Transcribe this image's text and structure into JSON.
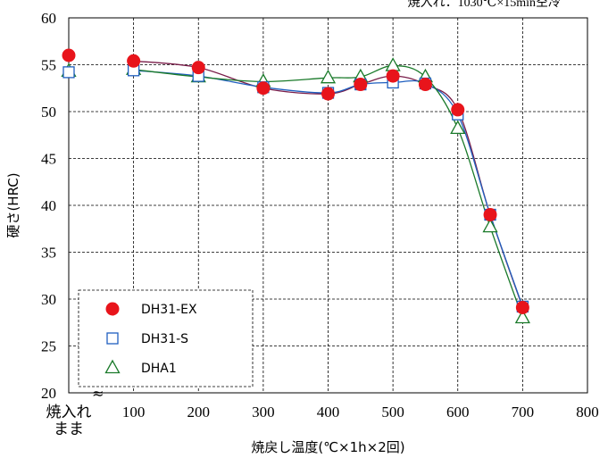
{
  "chart_data": {
    "type": "line",
    "annotation": "焼入れ：1030℃×15min空冷",
    "xlabel": "焼戻し温度(℃×1h×2回)",
    "ylabel": "硬さ(HRC)",
    "xlim": [
      0,
      800
    ],
    "ylim": [
      20,
      60
    ],
    "x_ticks": [
      {
        "x": 0,
        "label": "焼入れ\nまま"
      },
      {
        "x": 100,
        "label": "100"
      },
      {
        "x": 200,
        "label": "200"
      },
      {
        "x": 300,
        "label": "300"
      },
      {
        "x": 400,
        "label": "400"
      },
      {
        "x": 500,
        "label": "500"
      },
      {
        "x": 600,
        "label": "600"
      },
      {
        "x": 700,
        "label": "700"
      },
      {
        "x": 800,
        "label": "800"
      }
    ],
    "y_ticks": [
      20,
      25,
      30,
      35,
      40,
      45,
      50,
      55,
      60
    ],
    "axis_break": "≈",
    "grid": true,
    "legend_position": "bottom-left",
    "series": [
      {
        "name": "DH31-EX",
        "marker": "filled-circle",
        "color": "#e8141b",
        "line_color": "#7a1e4a",
        "points": [
          [
            100,
            55.4
          ],
          [
            200,
            54.7
          ],
          [
            300,
            52.5
          ],
          [
            400,
            51.9
          ],
          [
            450,
            52.9
          ],
          [
            500,
            53.8
          ],
          [
            550,
            52.9
          ],
          [
            600,
            50.2
          ],
          [
            650,
            39.0
          ],
          [
            700,
            29.1
          ]
        ]
      },
      {
        "name": "DH31-S",
        "marker": "open-square",
        "color": "#1f5fbf",
        "line_color": "#1f5fbf",
        "points": [
          [
            0,
            54.2
          ],
          [
            100,
            54.4
          ],
          [
            200,
            53.8
          ],
          [
            300,
            52.6
          ],
          [
            400,
            52.0
          ],
          [
            450,
            52.9
          ],
          [
            500,
            53.1
          ],
          [
            550,
            53.0
          ],
          [
            600,
            49.7
          ],
          [
            650,
            39.0
          ],
          [
            700,
            29.2
          ]
        ]
      },
      {
        "name": "DHA1",
        "marker": "open-triangle",
        "color": "#1a7a2a",
        "line_color": "#1a7a2a",
        "points": [
          [
            0,
            54.3
          ],
          [
            100,
            54.5
          ],
          [
            200,
            53.7
          ],
          [
            300,
            53.2
          ],
          [
            400,
            53.6
          ],
          [
            450,
            53.7
          ],
          [
            500,
            54.9
          ],
          [
            550,
            53.7
          ],
          [
            600,
            48.2
          ],
          [
            650,
            37.7
          ],
          [
            700,
            28.0
          ]
        ]
      },
      {
        "name": "DH31-EX",
        "marker": "filled-circle",
        "color": "#e8141b",
        "show_in_legend": false,
        "unconnected": true,
        "points": [
          [
            0,
            56.0
          ]
        ]
      }
    ]
  }
}
